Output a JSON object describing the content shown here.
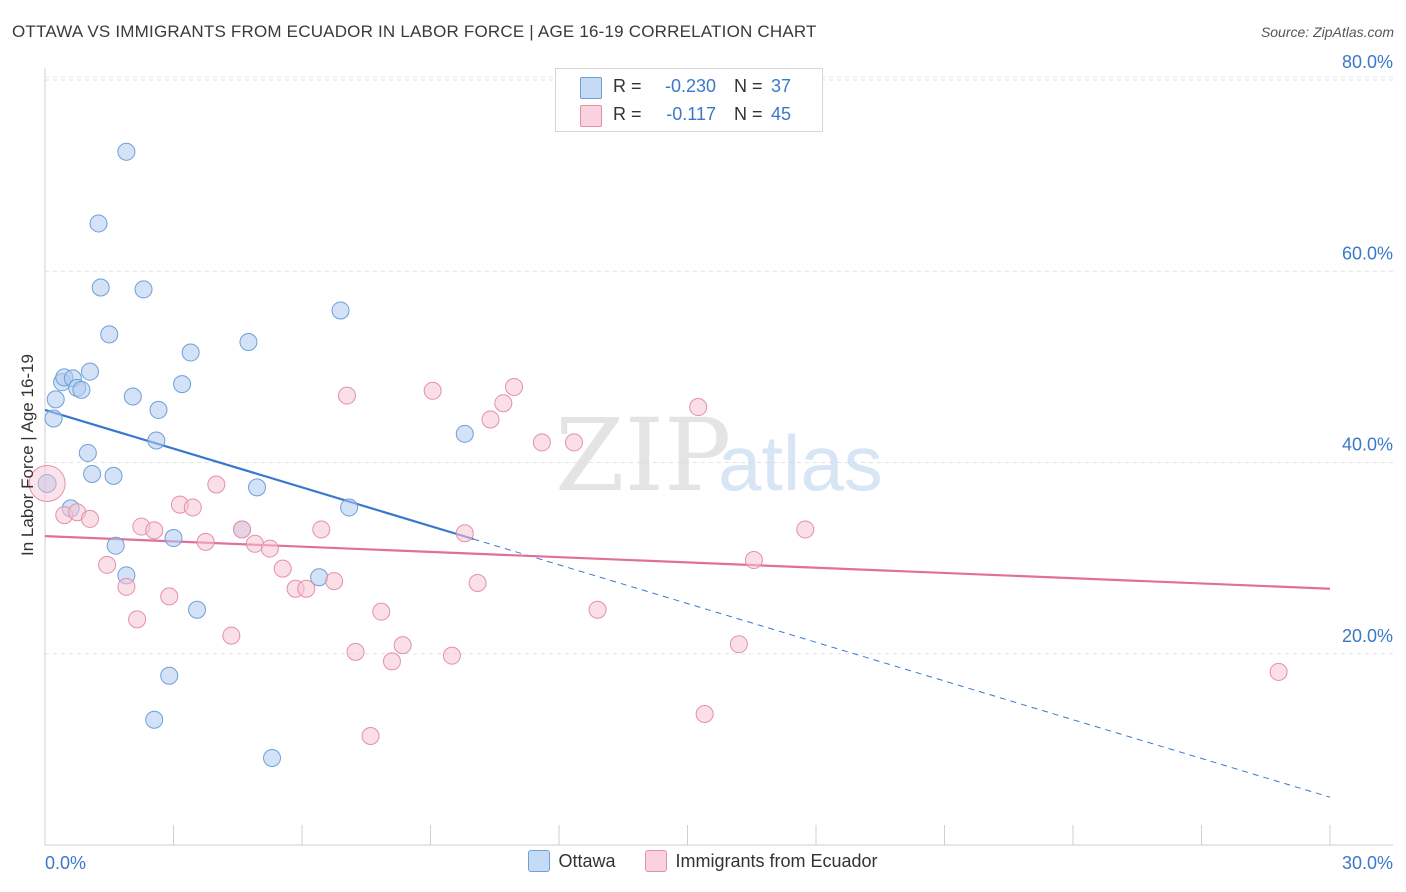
{
  "title": "OTTAWA VS IMMIGRANTS FROM ECUADOR IN LABOR FORCE | AGE 16-19 CORRELATION CHART",
  "source": "Source: ZipAtlas.com",
  "watermark": {
    "zip": "ZIP",
    "atlas": "atlas"
  },
  "stats": {
    "r_label": "R =",
    "n_label": "N =",
    "rows": [
      {
        "r": "-0.230",
        "n": "37",
        "color": "#aecbef"
      },
      {
        "r": "-0.117",
        "n": "45",
        "color": "#f5b8cb"
      }
    ]
  },
  "legend": [
    {
      "label": "Ottawa",
      "color": "#aecbef",
      "border": "#6f9fd8"
    },
    {
      "label": "Immigrants from Ecuador",
      "color": "#f5c4d3",
      "border": "#e58fab"
    }
  ],
  "chart_data": {
    "type": "scatter",
    "xlabel": "",
    "ylabel": "In Labor Force | Age 16-19",
    "xlim": [
      0,
      30
    ],
    "ylim": [
      0,
      80
    ],
    "x_tick_labels": {
      "left": "0.0%",
      "right": "30.0%"
    },
    "y_ticks": [
      {
        "value": 20,
        "label": "20.0%"
      },
      {
        "value": 40,
        "label": "40.0%"
      },
      {
        "value": 60,
        "label": "60.0%"
      },
      {
        "value": 80,
        "label": "80.0%"
      }
    ],
    "series": [
      {
        "name": "Ottawa",
        "color": "#6f9fd8",
        "fill": "#aecbef",
        "trend": {
          "x0": 0,
          "y0": 45.5,
          "x1": 10,
          "y1": 32.0,
          "dash_to_x": 30,
          "dash_to_y": 5.0,
          "color": "#3a78d0"
        },
        "points": [
          [
            0.05,
            37.8
          ],
          [
            0.2,
            44.6
          ],
          [
            0.25,
            46.6
          ],
          [
            0.4,
            48.4
          ],
          [
            0.45,
            48.9
          ],
          [
            0.6,
            35.2
          ],
          [
            0.65,
            48.8
          ],
          [
            0.75,
            47.8
          ],
          [
            0.85,
            47.6
          ],
          [
            1.0,
            41.0
          ],
          [
            1.05,
            49.5
          ],
          [
            1.1,
            38.8
          ],
          [
            1.3,
            58.3
          ],
          [
            1.5,
            53.4
          ],
          [
            1.6,
            38.6
          ],
          [
            1.65,
            31.3
          ],
          [
            1.9,
            28.2
          ],
          [
            1.9,
            72.5
          ],
          [
            2.05,
            46.9
          ],
          [
            2.3,
            58.1
          ],
          [
            2.55,
            13.1
          ],
          [
            2.6,
            42.3
          ],
          [
            2.65,
            45.5
          ],
          [
            2.9,
            17.7
          ],
          [
            3.0,
            32.1
          ],
          [
            3.2,
            48.2
          ],
          [
            3.4,
            51.5
          ],
          [
            3.55,
            24.6
          ],
          [
            4.6,
            33.0
          ],
          [
            4.75,
            52.6
          ],
          [
            4.95,
            37.4
          ],
          [
            5.3,
            9.1
          ],
          [
            6.4,
            28.0
          ],
          [
            6.9,
            55.9
          ],
          [
            7.1,
            35.3
          ],
          [
            9.8,
            43.0
          ],
          [
            1.25,
            65.0
          ]
        ]
      },
      {
        "name": "Immigrants from Ecuador",
        "color": "#e58fab",
        "fill": "#f5c4d3",
        "trend": {
          "x0": 0,
          "y0": 32.3,
          "x1": 30,
          "y1": 26.8,
          "color": "#e0709a"
        },
        "points": [
          [
            0.05,
            37.8
          ],
          [
            0.45,
            34.5
          ],
          [
            0.75,
            34.8
          ],
          [
            1.05,
            34.1
          ],
          [
            1.45,
            29.3
          ],
          [
            1.9,
            27.0
          ],
          [
            2.15,
            23.6
          ],
          [
            2.25,
            33.3
          ],
          [
            2.55,
            32.9
          ],
          [
            2.9,
            26.0
          ],
          [
            3.15,
            35.6
          ],
          [
            3.45,
            35.3
          ],
          [
            3.75,
            31.7
          ],
          [
            4.0,
            37.7
          ],
          [
            4.35,
            21.9
          ],
          [
            4.6,
            33.0
          ],
          [
            4.9,
            31.5
          ],
          [
            5.25,
            31.0
          ],
          [
            5.55,
            28.9
          ],
          [
            5.85,
            26.8
          ],
          [
            6.1,
            26.8
          ],
          [
            6.45,
            33.0
          ],
          [
            6.75,
            27.6
          ],
          [
            7.05,
            47.0
          ],
          [
            7.25,
            20.2
          ],
          [
            7.6,
            11.4
          ],
          [
            7.85,
            24.4
          ],
          [
            8.1,
            19.2
          ],
          [
            8.35,
            20.9
          ],
          [
            9.05,
            47.5
          ],
          [
            9.5,
            19.8
          ],
          [
            9.8,
            32.6
          ],
          [
            10.1,
            27.4
          ],
          [
            10.4,
            44.5
          ],
          [
            10.7,
            46.2
          ],
          [
            10.95,
            47.9
          ],
          [
            11.6,
            42.1
          ],
          [
            12.35,
            42.1
          ],
          [
            12.9,
            24.6
          ],
          [
            15.25,
            45.8
          ],
          [
            15.4,
            13.7
          ],
          [
            16.2,
            21.0
          ],
          [
            16.55,
            29.8
          ],
          [
            17.75,
            33.0
          ],
          [
            28.8,
            18.1
          ]
        ]
      }
    ]
  }
}
